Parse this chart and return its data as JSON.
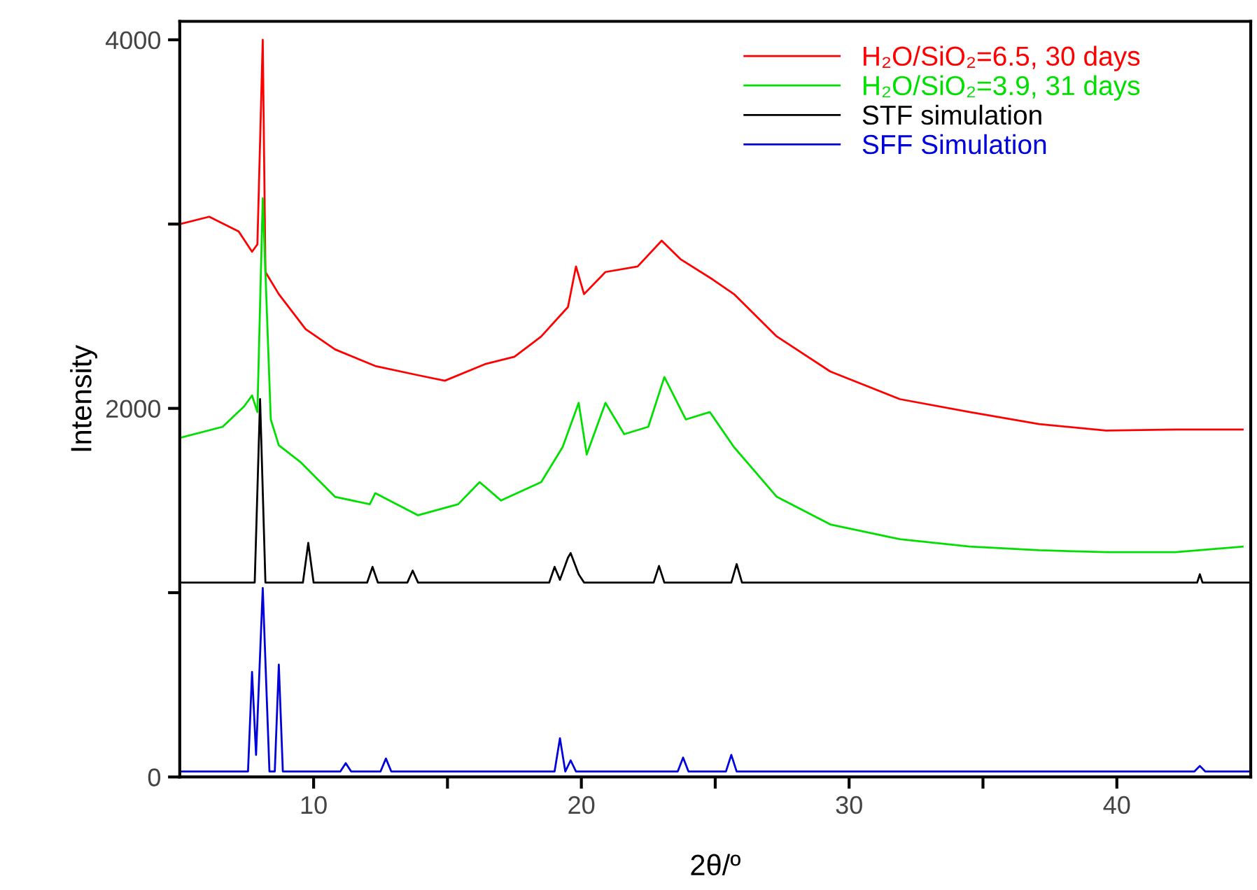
{
  "chart_data": {
    "type": "line",
    "xlabel": "2θ/º",
    "ylabel": "Intensity",
    "xlim": [
      5,
      45
    ],
    "ylim": [
      0,
      4100
    ],
    "xticks": [
      10,
      {
        "value": 15,
        "label": null
      },
      20,
      {
        "value": 25,
        "label": null
      },
      30,
      {
        "value": 35,
        "label": null
      },
      40
    ],
    "yticks": [
      0,
      {
        "value": 1000,
        "label": null
      },
      2000,
      {
        "value": 3000,
        "label": null
      },
      4000
    ],
    "grid": false,
    "legend": "top right",
    "marker": "none",
    "line_style": "solid",
    "series": [
      {
        "name": "H₂O/SiO₂=6.5, 30 days",
        "color": "#ff0000",
        "x": [
          5.0,
          6.1,
          7.2,
          7.7,
          7.9,
          8.1,
          8.2,
          8.7,
          9.7,
          10.8,
          12.3,
          13.9,
          14.9,
          16.4,
          17.5,
          18.5,
          19.5,
          19.8,
          20.1,
          20.9,
          22.1,
          23.0,
          23.7,
          24.9,
          25.7,
          27.3,
          29.3,
          31.9,
          34.5,
          37.1,
          39.6,
          42.2,
          44.7
        ],
        "values": [
          3000,
          3040,
          2960,
          2850,
          2890,
          4000,
          2740,
          2620,
          2430,
          2320,
          2230,
          2180,
          2150,
          2240,
          2280,
          2390,
          2550,
          2770,
          2620,
          2740,
          2770,
          2910,
          2810,
          2700,
          2620,
          2390,
          2200,
          2050,
          1980,
          1915,
          1880,
          1885,
          1885
        ]
      },
      {
        "name": "H₂O/SiO₂=3.9, 31 days",
        "color": "#00e000",
        "x": [
          5.0,
          6.6,
          7.4,
          7.7,
          7.9,
          8.1,
          8.4,
          8.7,
          9.5,
          10.8,
          12.1,
          12.3,
          13.9,
          15.4,
          16.2,
          17.0,
          18.5,
          19.3,
          19.9,
          20.2,
          20.9,
          21.6,
          22.5,
          23.1,
          23.9,
          24.8,
          25.7,
          27.3,
          29.3,
          31.9,
          34.5,
          37.1,
          39.6,
          42.2,
          44.7
        ],
        "values": [
          1840,
          1900,
          2010,
          2070,
          1980,
          3140,
          1940,
          1800,
          1710,
          1520,
          1480,
          1540,
          1420,
          1480,
          1600,
          1500,
          1600,
          1790,
          2030,
          1750,
          2030,
          1860,
          1900,
          2170,
          1940,
          1980,
          1790,
          1520,
          1370,
          1290,
          1250,
          1230,
          1220,
          1220,
          1250
        ]
      },
      {
        "name": "STF simulation",
        "color": "#000000",
        "x": [
          5.0,
          7.8,
          8.0,
          8.2,
          9.6,
          9.8,
          10.0,
          12.0,
          12.2,
          12.4,
          13.5,
          13.7,
          13.9,
          18.8,
          19.0,
          19.2,
          19.5,
          19.6,
          19.9,
          20.1,
          22.7,
          22.9,
          23.1,
          25.6,
          25.8,
          26.0,
          43.0,
          43.1,
          43.2,
          45.0
        ],
        "values": [
          1055,
          1055,
          2050,
          1055,
          1055,
          1270,
          1055,
          1055,
          1140,
          1055,
          1055,
          1120,
          1055,
          1055,
          1140,
          1070,
          1190,
          1215,
          1100,
          1055,
          1055,
          1145,
          1055,
          1055,
          1155,
          1055,
          1055,
          1100,
          1055,
          1055
        ]
      },
      {
        "name": "SFF Simulation",
        "color": "#0000dd",
        "x": [
          5.0,
          7.55,
          7.7,
          7.85,
          8.1,
          8.35,
          8.55,
          8.7,
          8.85,
          11.0,
          11.2,
          11.4,
          12.5,
          12.7,
          12.9,
          19.0,
          19.2,
          19.4,
          19.6,
          19.8,
          23.6,
          23.8,
          24.0,
          25.4,
          25.6,
          25.8,
          42.9,
          43.1,
          43.3,
          45.0
        ],
        "values": [
          30,
          30,
          570,
          120,
          1025,
          30,
          30,
          610,
          30,
          30,
          75,
          30,
          30,
          100,
          30,
          30,
          210,
          30,
          90,
          30,
          30,
          105,
          30,
          30,
          120,
          30,
          30,
          60,
          30,
          30
        ]
      }
    ]
  }
}
